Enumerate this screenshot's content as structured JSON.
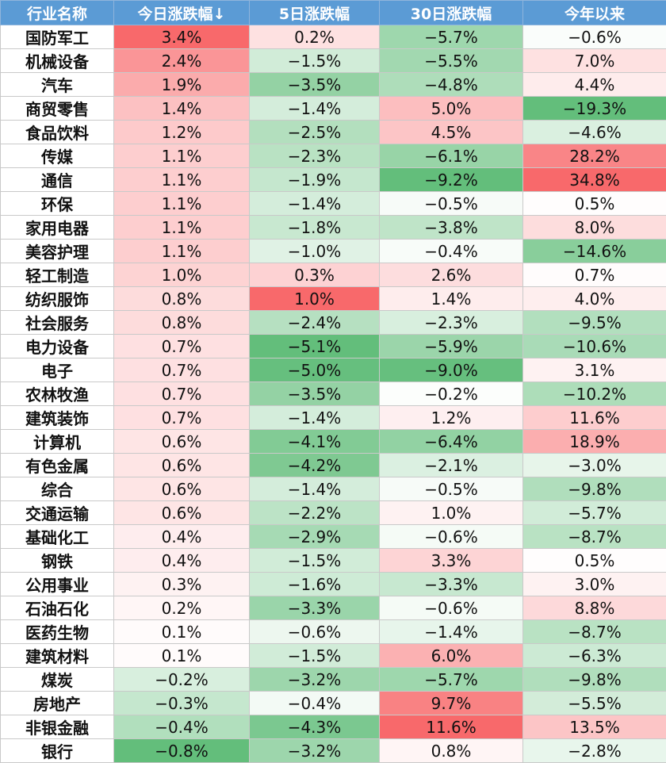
{
  "header": [
    "行业名称",
    "今日涨跌幅↓",
    "5日涨跌幅",
    "30日涨跌幅",
    "今年以来"
  ],
  "rows": [
    [
      "国防军工",
      "3.4%",
      "0.2%",
      "−5.7%",
      "−0.6%"
    ],
    [
      "机械设备",
      "2.4%",
      "−1.5%",
      "−5.5%",
      "7.0%"
    ],
    [
      "汽车",
      "1.9%",
      "−3.5%",
      "−4.8%",
      "4.4%"
    ],
    [
      "商贸零售",
      "1.4%",
      "−1.4%",
      "5.0%",
      "−19.3%"
    ],
    [
      "食品饮料",
      "1.2%",
      "−2.5%",
      "4.5%",
      "−4.6%"
    ],
    [
      "传媒",
      "1.1%",
      "−2.3%",
      "−6.1%",
      "28.2%"
    ],
    [
      "通信",
      "1.1%",
      "−1.9%",
      "−9.2%",
      "34.8%"
    ],
    [
      "环保",
      "1.1%",
      "−1.4%",
      "−0.5%",
      "0.5%"
    ],
    [
      "家用电器",
      "1.1%",
      "−1.8%",
      "−3.8%",
      "8.0%"
    ],
    [
      "美容护理",
      "1.1%",
      "−1.0%",
      "−0.4%",
      "−14.6%"
    ],
    [
      "轻工制造",
      "1.0%",
      "0.3%",
      "2.6%",
      "0.7%"
    ],
    [
      "纺织服饰",
      "0.8%",
      "1.0%",
      "1.4%",
      "4.0%"
    ],
    [
      "社会服务",
      "0.8%",
      "−2.4%",
      "−2.3%",
      "−9.5%"
    ],
    [
      "电力设备",
      "0.7%",
      "−5.1%",
      "−5.9%",
      "−10.6%"
    ],
    [
      "电子",
      "0.7%",
      "−5.0%",
      "−9.0%",
      "3.1%"
    ],
    [
      "农林牧渔",
      "0.7%",
      "−3.5%",
      "−0.2%",
      "−10.2%"
    ],
    [
      "建筑装饰",
      "0.7%",
      "−1.4%",
      "1.2%",
      "11.6%"
    ],
    [
      "计算机",
      "0.6%",
      "−4.1%",
      "−6.4%",
      "18.9%"
    ],
    [
      "有色金属",
      "0.6%",
      "−4.2%",
      "−2.1%",
      "−3.0%"
    ],
    [
      "综合",
      "0.6%",
      "−1.4%",
      "−0.5%",
      "−9.8%"
    ],
    [
      "交通运输",
      "0.6%",
      "−2.2%",
      "1.0%",
      "−5.7%"
    ],
    [
      "基础化工",
      "0.4%",
      "−2.9%",
      "−0.6%",
      "−8.7%"
    ],
    [
      "钢铁",
      "0.4%",
      "−1.5%",
      "3.3%",
      "0.5%"
    ],
    [
      "公用事业",
      "0.3%",
      "−1.6%",
      "−3.3%",
      "3.0%"
    ],
    [
      "石油石化",
      "0.2%",
      "−3.3%",
      "−0.6%",
      "8.8%"
    ],
    [
      "医药生物",
      "0.1%",
      "−0.6%",
      "−1.4%",
      "−8.7%"
    ],
    [
      "建筑材料",
      "0.1%",
      "−1.5%",
      "6.0%",
      "−6.3%"
    ],
    [
      "煤炭",
      "−0.2%",
      "−3.2%",
      "−5.7%",
      "−9.8%"
    ],
    [
      "房地产",
      "−0.3%",
      "−0.4%",
      "9.7%",
      "−5.5%"
    ],
    [
      "非银金融",
      "−0.4%",
      "−4.3%",
      "11.6%",
      "13.5%"
    ],
    [
      "银行",
      "−0.8%",
      "−3.2%",
      "0.8%",
      "−2.8%"
    ]
  ],
  "colors": {
    "header_bg": "#5b9bd5",
    "positive_max": "#f8696b",
    "negative_max": "#63be7b",
    "neutral": "#ffffff"
  }
}
